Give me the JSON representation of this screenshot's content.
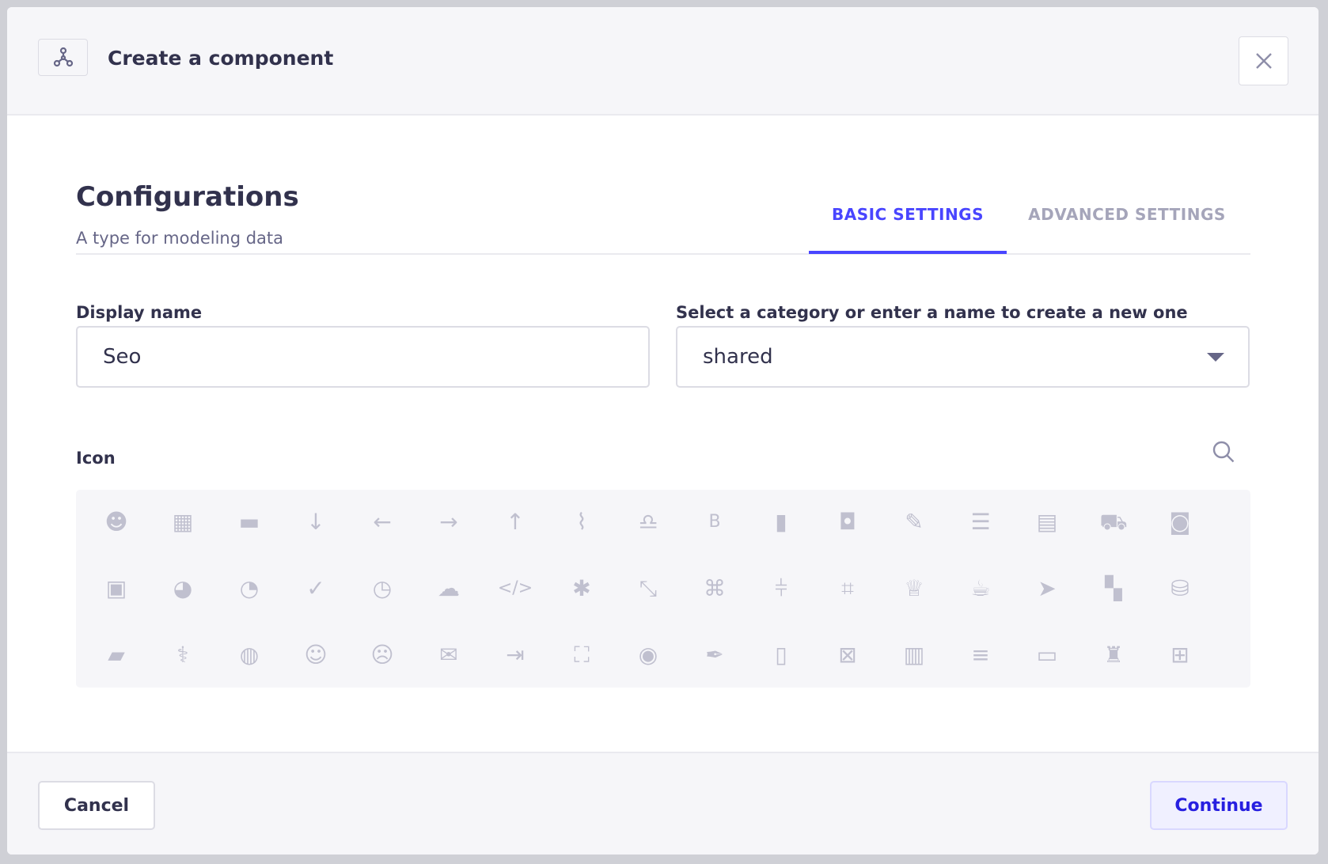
{
  "header": {
    "title": "Create a component",
    "icon": "component-icon",
    "close_icon": "close-icon"
  },
  "config": {
    "title": "Configurations",
    "subtitle": "A type for modeling data"
  },
  "tabs": [
    {
      "label": "BASIC SETTINGS",
      "active": true
    },
    {
      "label": "ADVANCED SETTINGS",
      "active": false
    }
  ],
  "form": {
    "display_name": {
      "label": "Display name",
      "value": "Seo"
    },
    "category": {
      "label": "Select a category or enter a name to create a new one",
      "value": "shared"
    },
    "icon": {
      "label": "Icon",
      "search_icon": "search-icon"
    }
  },
  "icons": [
    [
      "alien",
      "th",
      "archive",
      "arrow-down",
      "arrow-left",
      "arrow-right",
      "arrow-up",
      "paperclip",
      "bell",
      "bold",
      "book",
      "briefcase",
      "paint-brush",
      "list",
      "calendar",
      "car",
      "cast"
    ],
    [
      "image",
      "chart-pie-alt",
      "chart-pie",
      "check",
      "clock",
      "cloud",
      "code",
      "cog",
      "compress",
      "command",
      "sliders",
      "crop",
      "crown",
      "coffee",
      "cursor",
      "dashboard",
      "database"
    ],
    [
      "comments",
      "stethoscope",
      "globe",
      "smile",
      "frown",
      "envelope",
      "sign-out",
      "expand",
      "eye",
      "feather",
      "file",
      "file-excel",
      "file-pdf",
      "filter",
      "folder",
      "chess-rook",
      "gift"
    ]
  ],
  "colors": {
    "accent": "#4945ff",
    "icon": "#c0c0cf",
    "text": "#32324d"
  },
  "footer": {
    "cancel": "Cancel",
    "continue": "Continue"
  }
}
